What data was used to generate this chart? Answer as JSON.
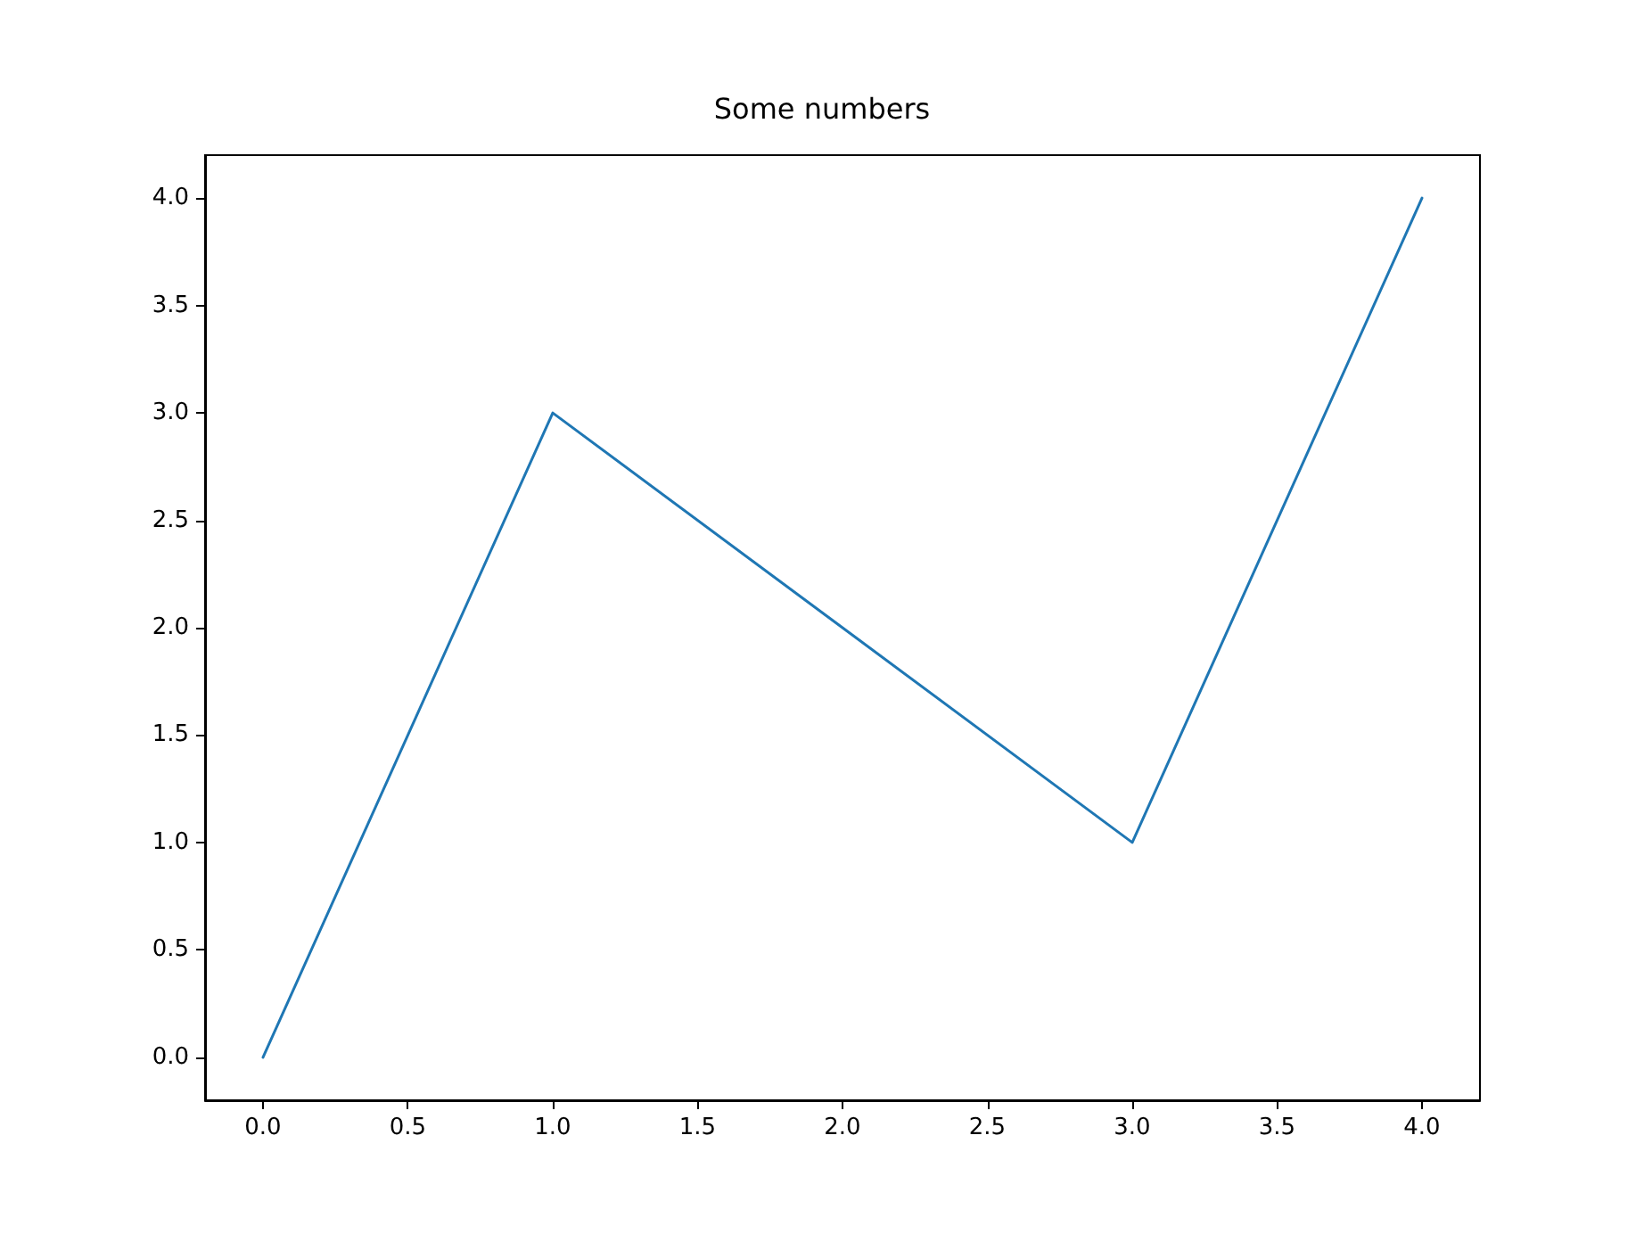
{
  "chart_data": {
    "type": "line",
    "title": "Some numbers",
    "x": [
      0,
      1,
      2,
      3,
      4
    ],
    "series": [
      {
        "color": "#1f77b4",
        "values": [
          0,
          3,
          2,
          1,
          4
        ]
      }
    ],
    "xlim": [
      -0.2,
      4.2
    ],
    "ylim": [
      -0.2,
      4.2
    ],
    "xticks": [
      {
        "value": 0,
        "label": "0.0"
      },
      {
        "value": 0.5,
        "label": "0.5"
      },
      {
        "value": 1,
        "label": "1.0"
      },
      {
        "value": 1.5,
        "label": "1.5"
      },
      {
        "value": 2,
        "label": "2.0"
      },
      {
        "value": 2.5,
        "label": "2.5"
      },
      {
        "value": 3,
        "label": "3.0"
      },
      {
        "value": 3.5,
        "label": "3.5"
      },
      {
        "value": 4,
        "label": "4.0"
      }
    ],
    "yticks": [
      {
        "value": 0,
        "label": "0.0"
      },
      {
        "value": 0.5,
        "label": "0.5"
      },
      {
        "value": 1,
        "label": "1.0"
      },
      {
        "value": 1.5,
        "label": "1.5"
      },
      {
        "value": 2,
        "label": "2.0"
      },
      {
        "value": 2.5,
        "label": "2.5"
      },
      {
        "value": 3,
        "label": "3.0"
      },
      {
        "value": 3.5,
        "label": "3.5"
      },
      {
        "value": 4,
        "label": "4.0"
      }
    ],
    "grid": false,
    "marker": "none",
    "line_style": "solid"
  }
}
